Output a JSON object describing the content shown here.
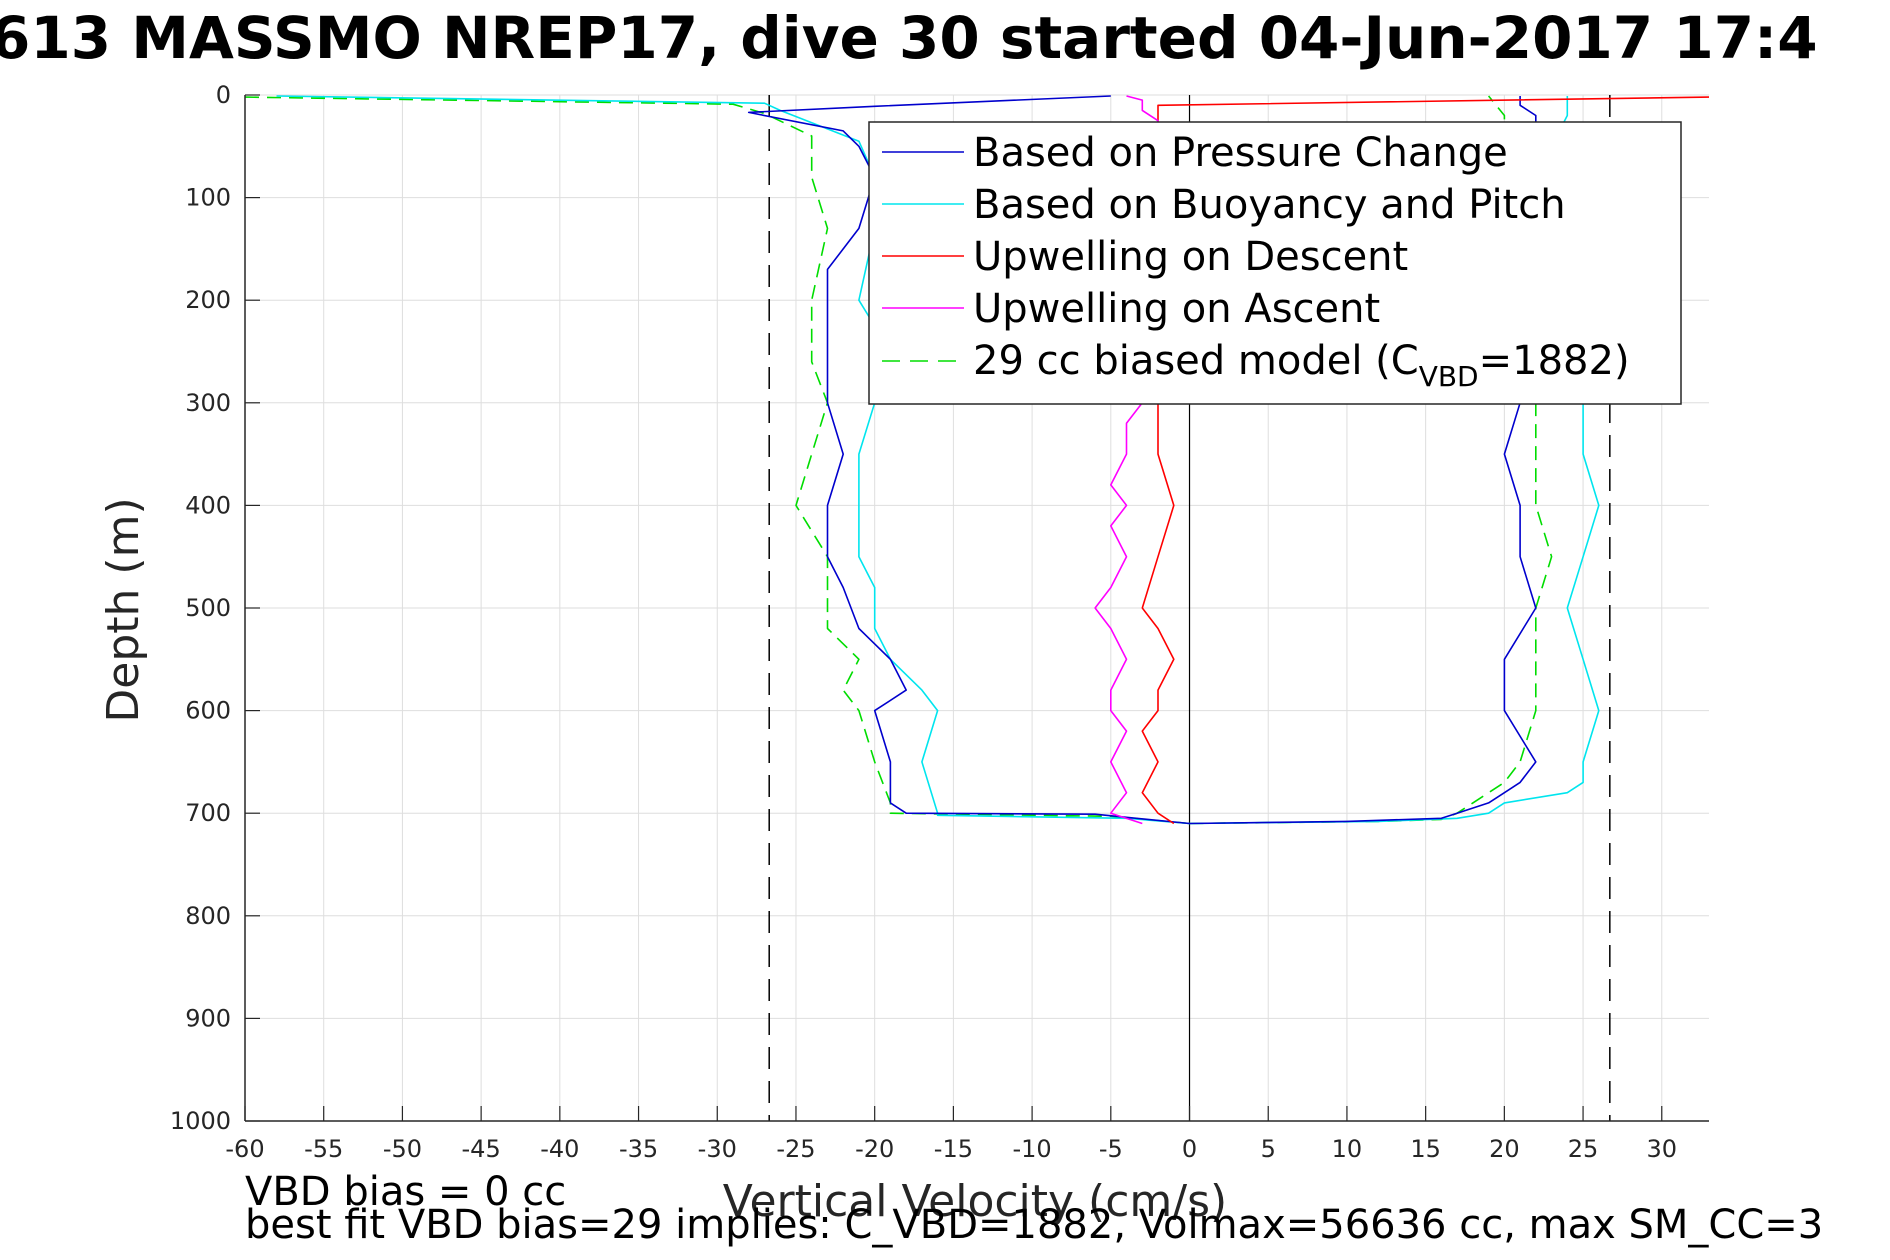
{
  "chart_data": {
    "type": "line",
    "title": "613 MASSMO NREP17, dive 30 started 04-Jun-2017 17:4",
    "xlabel": "Vertical Velocity (cm/s)",
    "ylabel": "Depth (m)",
    "xlim": [
      -60,
      33
    ],
    "ylim": [
      0,
      1000
    ],
    "y_reversed": true,
    "grid": true,
    "legend_position": "top-right",
    "x_ticks": [
      "-60",
      "-55",
      "-50",
      "-45",
      "-40",
      "-35",
      "-30",
      "-25",
      "-20",
      "-15",
      "-10",
      "-5",
      "0",
      "5",
      "10",
      "15",
      "20",
      "25",
      "30"
    ],
    "y_ticks": [
      "0",
      "100",
      "200",
      "300",
      "400",
      "500",
      "600",
      "700",
      "800",
      "900",
      "1000"
    ],
    "reference_lines": {
      "vertical_dashed_x": [
        -26.7,
        26.7
      ],
      "zero_line_x": 0
    },
    "legend": {
      "line1": "Based on Pressure Change",
      "line2": "Based on Buoyancy and Pitch",
      "line3": "Upwelling on Descent",
      "line4": "Upwelling on Ascent",
      "line5_pre": "29 cc biased model (C",
      "line5_sub": "VBD",
      "line5_post": "=1882)"
    },
    "series": [
      {
        "name": "Based on Pressure Change",
        "color": "#0000cd",
        "style": "solid",
        "x": [
          -5,
          -20,
          -28,
          -22,
          -21,
          -20,
          -21,
          -23,
          -23,
          -23,
          -23,
          -22,
          -23,
          -23,
          -22,
          -21,
          -19,
          -18,
          -20,
          -19,
          -19,
          -18,
          -6,
          0
        ],
        "y": [
          1,
          11,
          17,
          35,
          50,
          80,
          130,
          170,
          220,
          260,
          300,
          350,
          400,
          450,
          480,
          520,
          550,
          580,
          600,
          650,
          690,
          700,
          701,
          710
        ]
      },
      {
        "name": "",
        "color": "#0000cd",
        "style": "solid",
        "x": [
          0,
          10,
          16,
          17,
          19,
          20,
          21,
          22,
          20,
          20,
          22,
          21,
          21,
          20,
          21,
          22,
          22,
          22,
          22,
          21,
          21
        ],
        "y": [
          710,
          708,
          705,
          700,
          690,
          680,
          670,
          650,
          600,
          550,
          500,
          450,
          400,
          350,
          300,
          200,
          100,
          50,
          20,
          10,
          1
        ]
      },
      {
        "name": "Based on Buoyancy and Pitch",
        "color": "#00e5ee",
        "style": "solid",
        "x": [
          -58,
          -27,
          -26,
          -21,
          -20,
          -20,
          -21,
          -19,
          -20,
          -21,
          -21,
          -21,
          -20,
          -20,
          -19,
          -17,
          -16,
          -17,
          -16,
          -16,
          -4,
          0
        ],
        "y": [
          1,
          8,
          15,
          45,
          80,
          130,
          200,
          250,
          300,
          350,
          400,
          450,
          480,
          520,
          550,
          580,
          600,
          650,
          700,
          702,
          705,
          710
        ]
      },
      {
        "name": "",
        "color": "#00e5ee",
        "style": "solid",
        "x": [
          0,
          12,
          17,
          19,
          20,
          24,
          25,
          25,
          26,
          25,
          24,
          25,
          26,
          25,
          25,
          24,
          24,
          23,
          24,
          24
        ],
        "y": [
          710,
          708,
          705,
          700,
          690,
          680,
          670,
          650,
          600,
          550,
          500,
          450,
          400,
          350,
          300,
          200,
          100,
          50,
          20,
          1
        ]
      },
      {
        "name": "Upwelling on Descent",
        "color": "#ff0000",
        "style": "solid",
        "x": [
          33,
          -2,
          -2,
          -2,
          -2,
          -1,
          -2,
          -3,
          -2,
          -1,
          -2,
          -2,
          -3,
          -2,
          -3,
          -2,
          -1
        ],
        "y": [
          2,
          10,
          25,
          300,
          350,
          400,
          450,
          500,
          520,
          550,
          580,
          600,
          620,
          650,
          680,
          700,
          710
        ]
      },
      {
        "name": "Upwelling on Ascent",
        "color": "#ff00ff",
        "style": "solid",
        "x": [
          -3,
          -5,
          -4,
          -5,
          -4,
          -5,
          -5,
          -4,
          -5,
          -6,
          -5,
          -4,
          -5,
          -4,
          -5,
          -4,
          -4,
          -3,
          -2,
          -3,
          -3,
          -4
        ],
        "y": [
          710,
          700,
          680,
          650,
          620,
          600,
          580,
          550,
          520,
          500,
          480,
          450,
          420,
          400,
          380,
          350,
          320,
          300,
          25,
          15,
          5,
          1
        ]
      },
      {
        "name": "29 cc biased model (CVBD=1882)",
        "color": "#00dd00",
        "style": "dashed",
        "x": [
          -60,
          -29,
          -27,
          -24,
          -24,
          -23,
          -24,
          -24,
          -23,
          -24,
          -25,
          -23,
          -23,
          -23,
          -21,
          -22,
          -21,
          -20,
          -19,
          -19,
          -5,
          0
        ],
        "y": [
          2,
          9,
          18,
          40,
          80,
          130,
          200,
          260,
          300,
          350,
          400,
          450,
          500,
          520,
          550,
          580,
          600,
          650,
          690,
          700,
          703,
          710
        ]
      },
      {
        "name": "",
        "color": "#00dd00",
        "style": "dashed",
        "x": [
          0,
          12,
          16,
          17,
          18,
          20,
          21,
          22,
          22,
          22,
          23,
          22,
          22,
          22,
          23,
          22,
          20,
          20,
          19
        ],
        "y": [
          710,
          708,
          706,
          700,
          690,
          670,
          650,
          600,
          550,
          500,
          450,
          400,
          350,
          300,
          200,
          100,
          50,
          20,
          1
        ]
      }
    ]
  },
  "footer": {
    "line1": "VBD bias = 0 cc",
    "line2": "best fit VBD bias=29 implies: C_VBD=1882, Volmax=56636 cc, max SM_CC=3"
  }
}
